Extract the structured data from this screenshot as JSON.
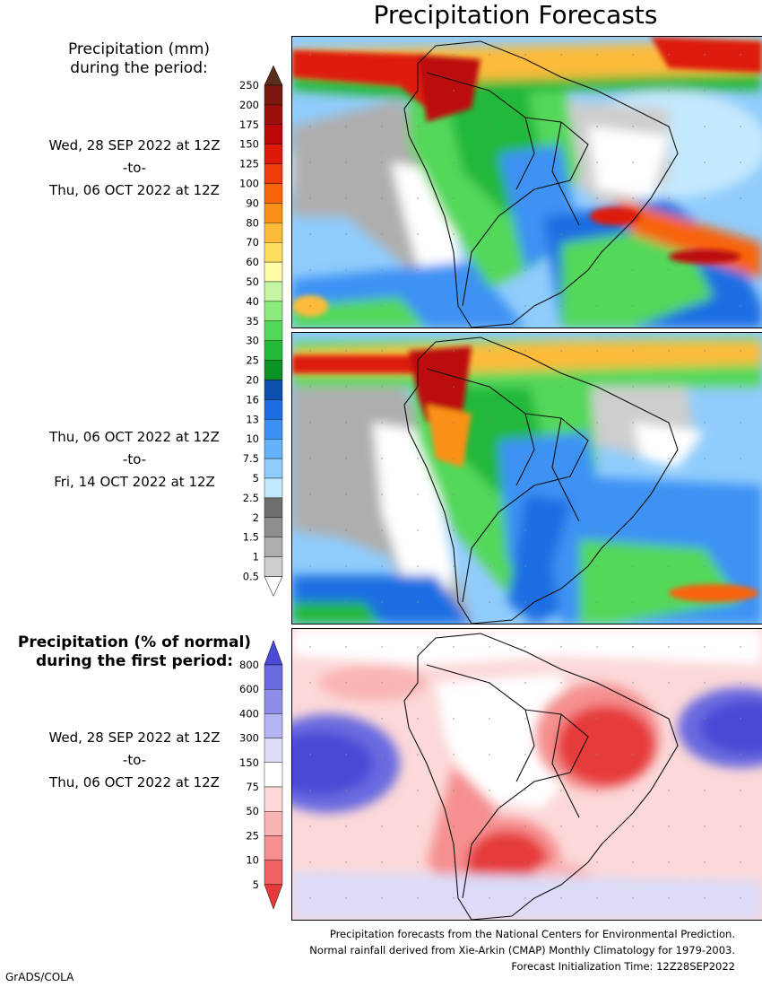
{
  "title": "Precipitation Forecasts",
  "amount_header": [
    "Precipitation (mm)",
    "during the period:"
  ],
  "percent_header": [
    "Precipitation (% of normal)",
    "during the first period:"
  ],
  "period1": {
    "start": "Wed, 28 SEP 2022 at 12Z",
    "sep": "-to-",
    "end": "Thu, 06 OCT 2022 at 12Z"
  },
  "period2": {
    "start": "Thu, 06 OCT 2022 at 12Z",
    "sep": "-to-",
    "end": "Fri, 14 OCT 2022 at 12Z"
  },
  "period3": {
    "start": "Wed, 28 SEP 2022 at 12Z",
    "sep": "-to-",
    "end": "Thu, 06 OCT 2022 at 12Z"
  },
  "amount_scale": {
    "labels": [
      "250",
      "200",
      "175",
      "150",
      "125",
      "100",
      "90",
      "80",
      "70",
      "60",
      "50",
      "40",
      "35",
      "30",
      "25",
      "20",
      "16",
      "13",
      "10",
      "7.5",
      "5",
      "2.5",
      "2",
      "1.5",
      "1",
      "0.5"
    ],
    "colors": [
      "#5a2e1e",
      "#7a1810",
      "#9a1008",
      "#bb0808",
      "#dd1a0a",
      "#f03c0a",
      "#f8640a",
      "#fb9018",
      "#fdbb3a",
      "#fde060",
      "#fdfaa8",
      "#c4f4a4",
      "#8eea80",
      "#52d85a",
      "#22b83a",
      "#0a9225",
      "#0d4fae",
      "#1c6ee2",
      "#3c92f4",
      "#64b2fa",
      "#90ccfc",
      "#c4e8fd",
      "#6e6e6e",
      "#8e8e8e",
      "#aeaeae",
      "#cecece",
      "#ffffff"
    ]
  },
  "percent_scale": {
    "labels": [
      "800",
      "600",
      "400",
      "300",
      "150",
      "75",
      "50",
      "25",
      "10",
      "5"
    ],
    "colors": [
      "#4a4ad6",
      "#6a6ae0",
      "#8e8ee8",
      "#b4b4f0",
      "#dcdcf8",
      "#ffffff",
      "#fcd8d8",
      "#fab4b4",
      "#f69090",
      "#f06262",
      "#e63a3a"
    ]
  },
  "footer": [
    "Precipitation forecasts from the National Centers for Environmental Prediction.",
    "Normal rainfall derived from Xie-Arkin (CMAP) Monthly Climatology for 1979-2003.",
    "Forecast Initialization Time: 12Z28SEP2022"
  ],
  "credit": "GrADS/COLA"
}
